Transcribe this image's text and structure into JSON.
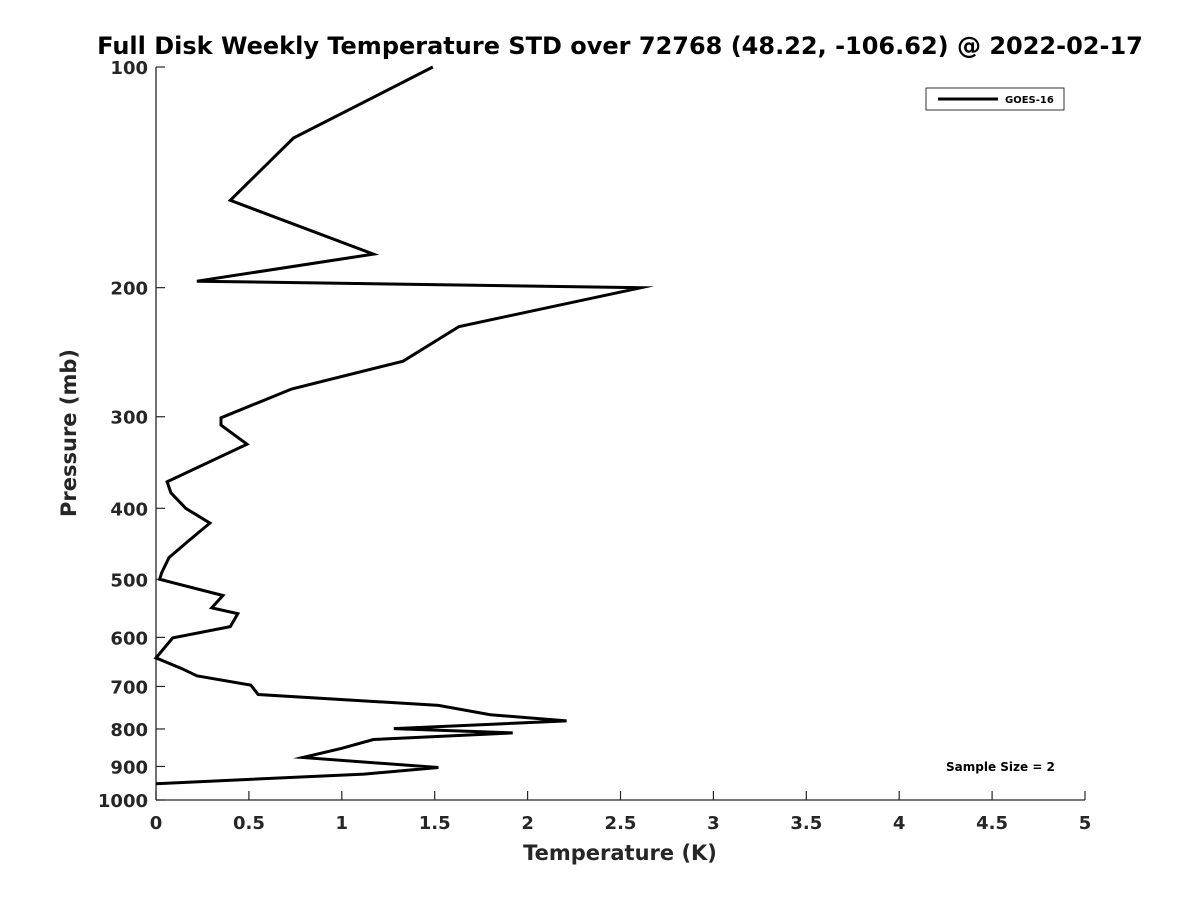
{
  "chart_data": {
    "type": "line",
    "title": "Full Disk Weekly Temperature STD over 72768 (48.22, -106.62) @ 2022-02-17",
    "xlabel": "Temperature (K)",
    "ylabel": "Pressure (mb)",
    "xlim": [
      0,
      5
    ],
    "ylim": [
      100,
      1000
    ],
    "y_scale": "log",
    "y_reversed": true,
    "grid": false,
    "legend_position": "top-right",
    "x_ticks": [
      "0",
      "0.5",
      "1",
      "1.5",
      "2",
      "2.5",
      "3",
      "3.5",
      "4",
      "4.5",
      "5"
    ],
    "y_ticks": [
      "100",
      "200",
      "300",
      "400",
      "500",
      "600",
      "700",
      "800",
      "900",
      "1000"
    ],
    "annotation": "Sample Size = 2",
    "series": [
      {
        "name": "GOES-16",
        "color": "#000000",
        "x": [
          1.49,
          0.74,
          0.4,
          1.17,
          0.22,
          2.61,
          1.63,
          1.33,
          0.73,
          0.35,
          0.35,
          0.49,
          0.06,
          0.08,
          0.16,
          0.29,
          0.18,
          0.07,
          0.03,
          0.02,
          0.36,
          0.3,
          0.44,
          0.4,
          0.09,
          0.0,
          0.14,
          0.22,
          0.51,
          0.55,
          1.52,
          1.8,
          2.21,
          1.28,
          1.92,
          1.17,
          1.0,
          0.79,
          1.52,
          1.12,
          0.0
        ],
        "y": [
          100,
          125,
          152,
          180,
          196,
          200,
          226,
          252,
          275,
          301,
          308,
          327,
          368,
          381,
          400,
          419,
          442,
          467,
          490,
          500,
          526,
          547,
          557,
          580,
          601,
          640,
          662,
          677,
          697,
          718,
          743,
          765,
          780,
          799,
          810,
          827,
          850,
          875,
          903,
          922,
          950
        ]
      }
    ]
  }
}
